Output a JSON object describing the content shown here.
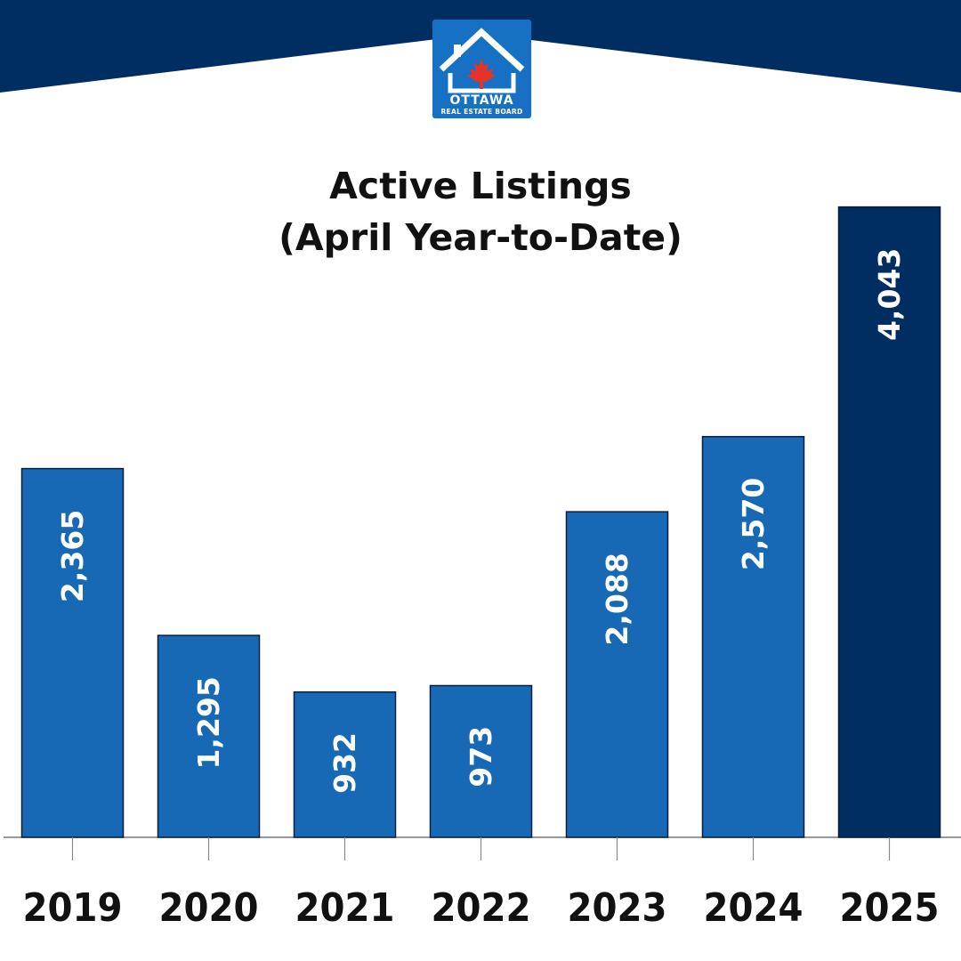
{
  "colors": {
    "navy": "#002d62",
    "bar_blue": "#1869b5",
    "highlight": "#002d62",
    "text_dark": "#111111",
    "axis": "#777777"
  },
  "logo": {
    "icon": "house-maple-leaf-icon",
    "word": "OTTAWA",
    "subword": "REAL ESTATE BOARD"
  },
  "chart_data": {
    "type": "bar",
    "title": "Active Listings",
    "subtitle": "(April Year-to-Date)",
    "categories": [
      "2019",
      "2020",
      "2021",
      "2022",
      "2023",
      "2024",
      "2025"
    ],
    "values": [
      2365,
      1295,
      932,
      973,
      2088,
      2570,
      4043
    ],
    "value_labels": [
      "2,365",
      "1,295",
      "932",
      "973",
      "2,088",
      "2,570",
      "4,043"
    ],
    "highlight_index": 6,
    "ylim": [
      0,
      4600
    ],
    "xlabel": "",
    "ylabel": "",
    "grid": false,
    "legend": "none"
  }
}
